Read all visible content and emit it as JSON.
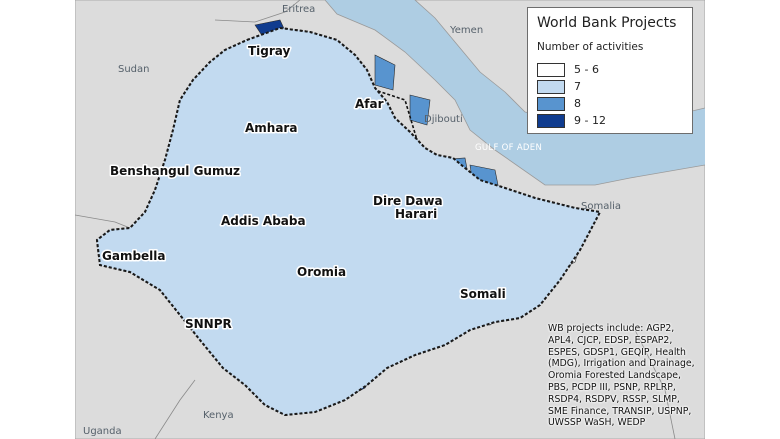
{
  "legend": {
    "title": "World Bank Projects",
    "subtitle": "Number of activities",
    "classes": [
      {
        "label": "5 - 6",
        "color": "#ffffff"
      },
      {
        "label": "7",
        "color": "#c2daf0"
      },
      {
        "label": "8",
        "color": "#5894cf"
      },
      {
        "label": "9 - 12",
        "color": "#103c8f"
      }
    ]
  },
  "countries": {
    "eritrea": "Eritrea",
    "yemen": "Yemen",
    "sudan": "Sudan",
    "djibouti": "Djibouti",
    "somalia": "Somalia",
    "uganda": "Uganda",
    "kenya": "Kenya"
  },
  "sea": {
    "gulf_of_aden": "GULF OF ADEN"
  },
  "regions": {
    "tigray": "Tigray",
    "afar": "Afar",
    "amhara": "Amhara",
    "benshangul_gumuz": "Benshangul Gumuz",
    "dire_dawa": "Dire Dawa",
    "harari": "Harari",
    "addis_ababa": "Addis Ababa",
    "gambella": "Gambella",
    "oromia": "Oromia",
    "somali": "Somali",
    "snnpr": "SNNPR"
  },
  "note": "WB projects include: AGP2, APL4, CJCP, EDSP, ESPAP2, ESPES, GDSP1, GEQIP, Health (MDG), Irrigation and Drainage, Oromia Forested Landscape, PBS, PCDP III, PSNP, RPLRP, RSDP4, RSDPV, RSSP, SLMP, SME Finance, TRANSIP, USPNP, UWSSP WaSH, WEDP"
}
